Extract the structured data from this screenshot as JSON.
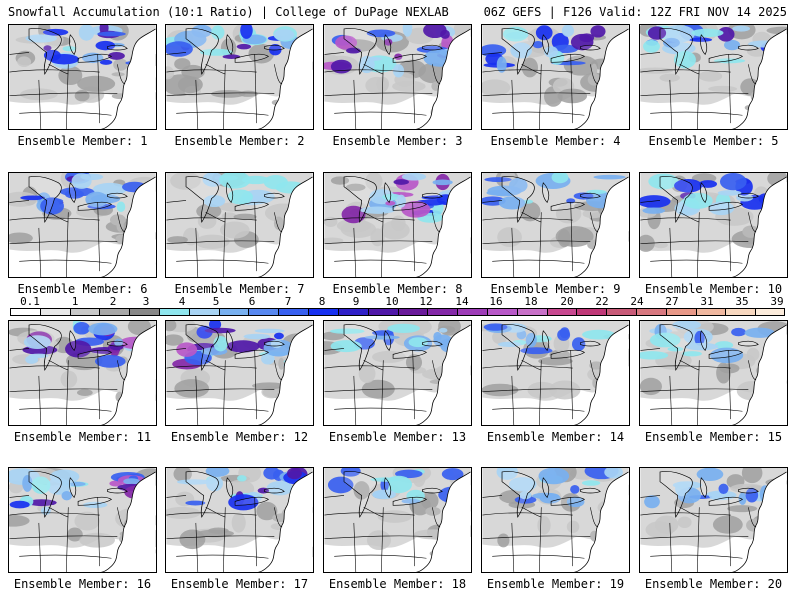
{
  "header": {
    "left": "Snowfall Accumulation (10:1 Ratio) | College of DuPage NEXLAB",
    "right": "06Z GEFS | F126 Valid: 12Z FRI NOV 14 2025"
  },
  "panels": [
    {
      "member": "1",
      "label": "Ensemble Member: 1",
      "intensity": 3
    },
    {
      "member": "2",
      "label": "Ensemble Member: 2",
      "intensity": 3
    },
    {
      "member": "3",
      "label": "Ensemble Member: 3",
      "intensity": 4
    },
    {
      "member": "4",
      "label": "Ensemble Member: 4",
      "intensity": 3
    },
    {
      "member": "5",
      "label": "Ensemble Member: 5",
      "intensity": 3
    },
    {
      "member": "6",
      "label": "Ensemble Member: 6",
      "intensity": 3
    },
    {
      "member": "7",
      "label": "Ensemble Member: 7",
      "intensity": 1
    },
    {
      "member": "8",
      "label": "Ensemble Member: 8",
      "intensity": 4
    },
    {
      "member": "9",
      "label": "Ensemble Member: 9",
      "intensity": 2
    },
    {
      "member": "10",
      "label": "Ensemble Member: 10",
      "intensity": 3
    },
    {
      "member": "11",
      "label": "Ensemble Member: 11",
      "intensity": 4
    },
    {
      "member": "12",
      "label": "Ensemble Member: 12",
      "intensity": 4
    },
    {
      "member": "13",
      "label": "Ensemble Member: 13",
      "intensity": 2
    },
    {
      "member": "14",
      "label": "Ensemble Member: 14",
      "intensity": 2
    },
    {
      "member": "15",
      "label": "Ensemble Member: 15",
      "intensity": 2
    },
    {
      "member": "16",
      "label": "Ensemble Member: 16",
      "intensity": 4
    },
    {
      "member": "17",
      "label": "Ensemble Member: 17",
      "intensity": 3
    },
    {
      "member": "18",
      "label": "Ensemble Member: 18",
      "intensity": 2
    },
    {
      "member": "19",
      "label": "Ensemble Member: 19",
      "intensity": 2
    },
    {
      "member": "20",
      "label": "Ensemble Member: 20",
      "intensity": 2
    }
  ],
  "colorbar": {
    "labels": [
      "0.1",
      "1",
      "2",
      "3",
      "4",
      "5",
      "6",
      "7",
      "8",
      "9",
      "10",
      "12",
      "14",
      "16",
      "18",
      "20",
      "22",
      "24",
      "27",
      "31",
      "35",
      "39"
    ],
    "colors": [
      "#ffffff",
      "#e8e8e8",
      "#c8c8c8",
      "#a8a8a8",
      "#888888",
      "#8fe6ee",
      "#a8d4f4",
      "#78b0f0",
      "#5888f0",
      "#3860f0",
      "#1830f0",
      "#3020c8",
      "#5018a8",
      "#6a1a9a",
      "#8428a8",
      "#9e3cb8",
      "#b858c8",
      "#c870c8",
      "#c84890",
      "#c03878",
      "#c85a78",
      "#d87880",
      "#e89888",
      "#f0b8a0",
      "#f8d8c0",
      "#fcecdc"
    ],
    "color_roles": {
      "map_border": "#000000",
      "state_lines": "#000000",
      "panel_background": "#ffffff"
    }
  }
}
